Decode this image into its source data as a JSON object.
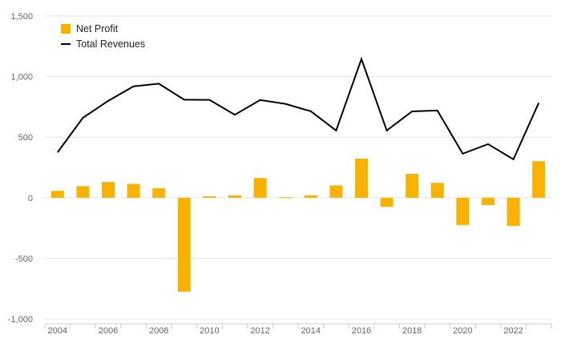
{
  "chart_data": {
    "type": "bar+line",
    "x": [
      2004,
      2005,
      2006,
      2007,
      2008,
      2009,
      2010,
      2011,
      2012,
      2013,
      2014,
      2015,
      2016,
      2017,
      2018,
      2019,
      2020,
      2021,
      2022,
      2023
    ],
    "x_tick_labels": [
      "2004",
      "2006",
      "2008",
      "2010",
      "2012",
      "2014",
      "2016",
      "2018",
      "2020",
      "2022"
    ],
    "y_tick_labels": [
      "1,500",
      "1,000",
      "500",
      "0",
      "-500",
      "-1,000"
    ],
    "ylim": [
      -1000,
      1500
    ],
    "series": [
      {
        "name": "Net Profit",
        "kind": "bar",
        "color": "#F9B200",
        "values": [
          57,
          96,
          130,
          114,
          78,
          -775,
          12,
          20,
          163,
          4,
          20,
          102,
          323,
          -75,
          197,
          123,
          -225,
          -60,
          -232,
          302
        ]
      },
      {
        "name": "Total Revenues",
        "kind": "line",
        "color": "#000000",
        "values": [
          375,
          660,
          800,
          920,
          942,
          810,
          808,
          685,
          807,
          775,
          714,
          555,
          1145,
          555,
          713,
          720,
          364,
          443,
          317,
          783
        ]
      }
    ],
    "legend": "top-left",
    "grid": true,
    "title": "",
    "xlabel": "",
    "ylabel": ""
  }
}
